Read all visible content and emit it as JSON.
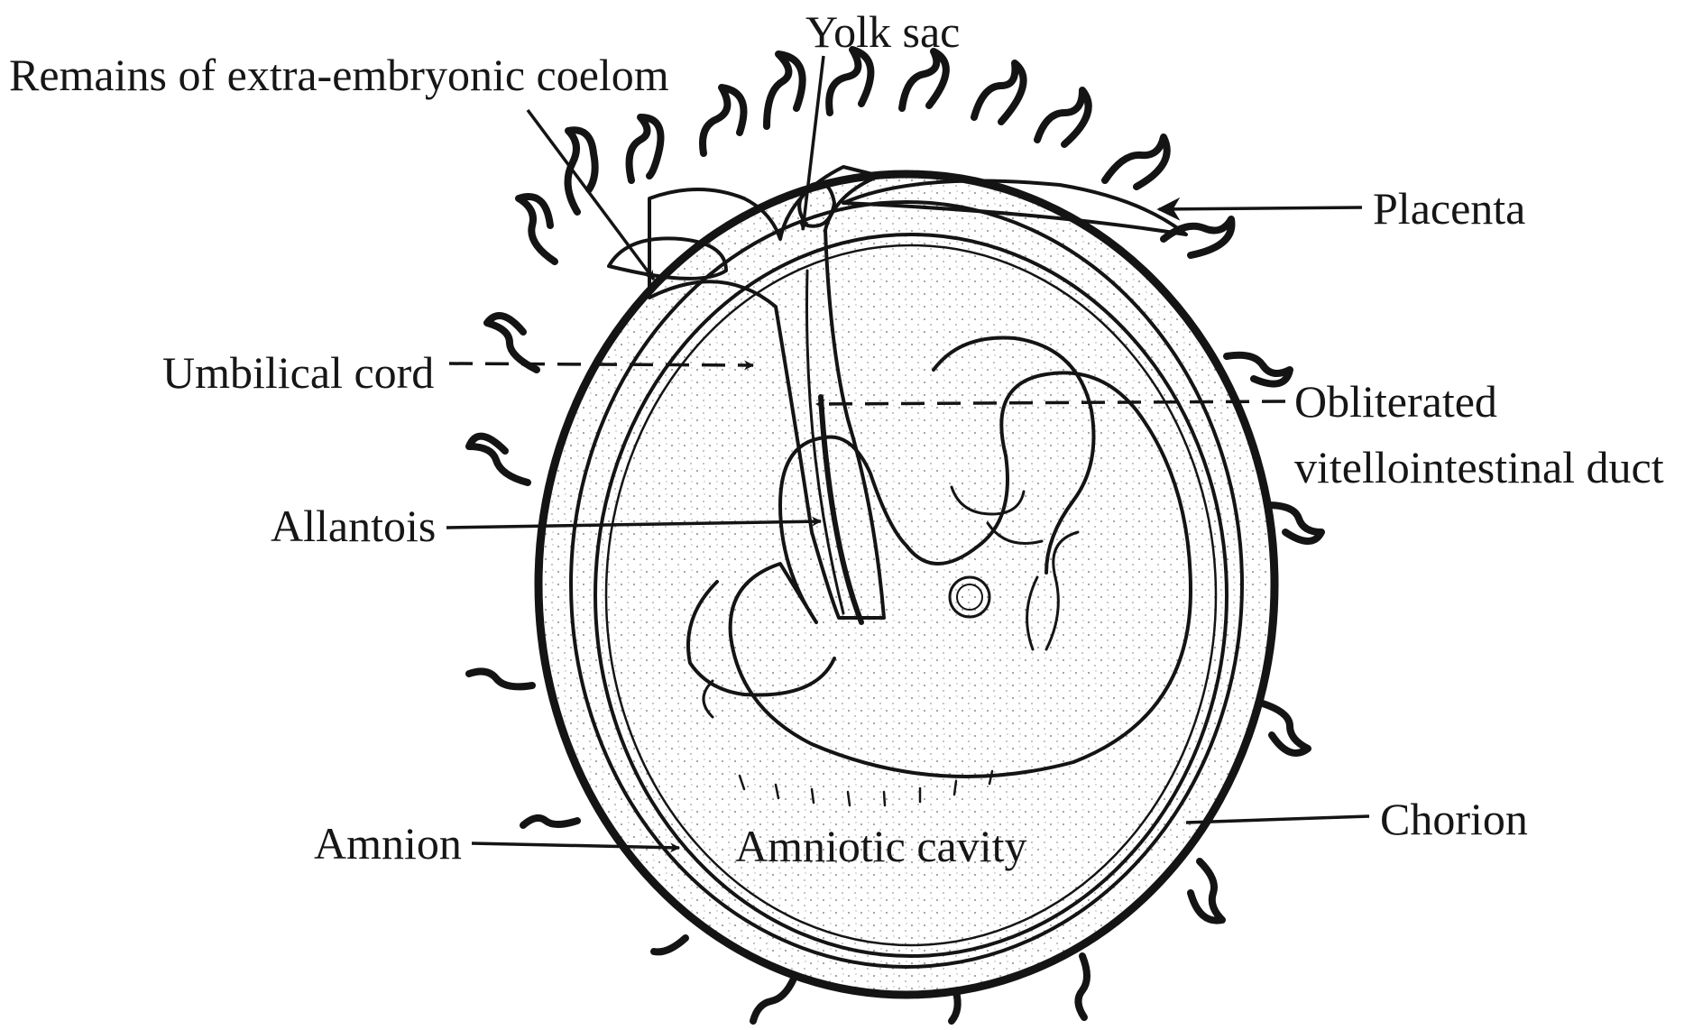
{
  "labels": {
    "yolk_sac": "Yolk sac",
    "remains_coelom": "Remains of extra-embryonic coelom",
    "placenta": "Placenta",
    "umbilical_cord": "Umbilical cord",
    "obliterated_line1": "Obliterated",
    "obliterated_line2": "vitellointestinal duct",
    "allantois": "Allantois",
    "amnion": "Amnion",
    "amniotic_cavity": "Amniotic cavity",
    "chorion": "Chorion"
  },
  "colors": {
    "ink": "#141414",
    "paper": "#ffffff",
    "stipple": "#8a8a8a"
  }
}
